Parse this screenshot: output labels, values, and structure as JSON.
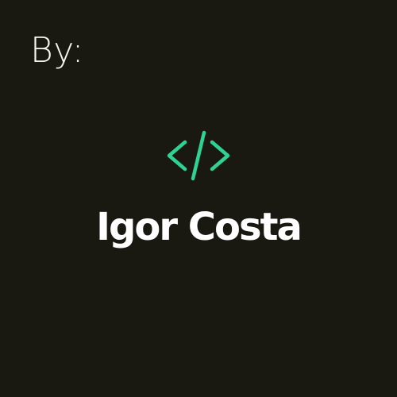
{
  "by_label": "By:",
  "logo": {
    "icon": "code-brackets-icon",
    "color": "#2fd391"
  },
  "author": {
    "name": "Igor Costa",
    "color": "#ffffff"
  },
  "colors": {
    "background": "#191912",
    "text": "#f4f4f0"
  }
}
